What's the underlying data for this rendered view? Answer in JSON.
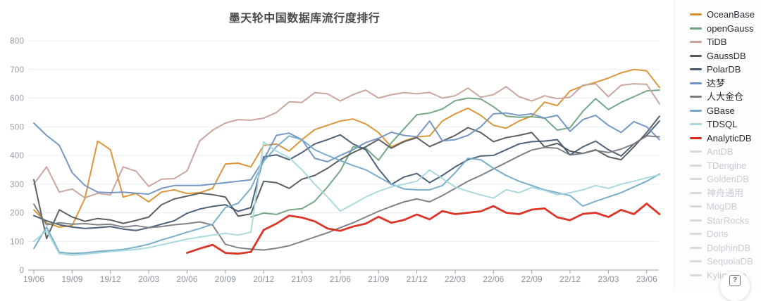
{
  "title": "墨天轮中国数据库流行度排行",
  "help_button": {
    "icon": "help-icon",
    "glyph": "?"
  },
  "legend": {
    "position": "right",
    "items": [
      {
        "label": "OceanBase",
        "color": "#d9902f",
        "active": true
      },
      {
        "label": "openGauss",
        "color": "#6fa380",
        "active": true
      },
      {
        "label": "TiDB",
        "color": "#c6a29a",
        "active": true
      },
      {
        "label": "GaussDB",
        "color": "#54575b",
        "active": true
      },
      {
        "label": "PolarDB",
        "color": "#435871",
        "active": true
      },
      {
        "label": "达梦",
        "color": "#7092c2",
        "active": true
      },
      {
        "label": "人大金仓",
        "color": "#797c80",
        "active": true
      },
      {
        "label": "GBase",
        "color": "#72aac8",
        "active": true
      },
      {
        "label": "TDSQL",
        "color": "#a6d7dc",
        "active": true
      },
      {
        "label": "AnalyticDB",
        "color": "#da2b1d",
        "active": true
      },
      {
        "label": "AntDB",
        "color": "#d6dade",
        "active": false
      },
      {
        "label": "TDengine",
        "color": "#d6dade",
        "active": false
      },
      {
        "label": "GoldenDB",
        "color": "#d6dade",
        "active": false
      },
      {
        "label": "神舟通用",
        "color": "#d6dade",
        "active": false
      },
      {
        "label": "MogDB",
        "color": "#d6dade",
        "active": false
      },
      {
        "label": "StarRocks",
        "color": "#d6dade",
        "active": false
      },
      {
        "label": "Doris",
        "color": "#d6dade",
        "active": false
      },
      {
        "label": "DolphinDB",
        "color": "#d6dade",
        "active": false
      },
      {
        "label": "SequoiaDB",
        "color": "#d6dade",
        "active": false
      },
      {
        "label": "Kyligence",
        "color": "#d6dade",
        "active": false
      }
    ]
  },
  "chart_data": {
    "type": "line",
    "title": "墨天轮中国数据库流行度排行",
    "grid": true,
    "legend_position": "right",
    "ylim": [
      0,
      800
    ],
    "y_ticks": [
      0,
      100,
      200,
      300,
      400,
      500,
      600,
      700,
      800
    ],
    "x": [
      "19/06",
      "19/07",
      "19/08",
      "19/09",
      "19/10",
      "19/11",
      "19/12",
      "20/01",
      "20/02",
      "20/03",
      "20/04",
      "20/05",
      "20/06",
      "20/07",
      "20/08",
      "20/09",
      "20/10",
      "20/11",
      "20/12",
      "21/01",
      "21/02",
      "21/03",
      "21/04",
      "21/05",
      "21/06",
      "21/07",
      "21/08",
      "21/09",
      "21/10",
      "21/11",
      "21/12",
      "22/01",
      "22/02",
      "22/03",
      "22/04",
      "22/05",
      "22/06",
      "22/07",
      "22/08",
      "22/09",
      "22/10",
      "22/11",
      "22/12",
      "23/01",
      "23/02",
      "23/03",
      "23/04",
      "23/05",
      "23/06",
      "23/07"
    ],
    "x_tick_labels": [
      "19/06",
      "19/09",
      "19/12",
      "20/03",
      "20/06",
      "20/09",
      "20/12",
      "21/03",
      "21/06",
      "21/09",
      "21/12",
      "22/03",
      "22/06",
      "22/09",
      "22/12",
      "23/03",
      "23/06"
    ],
    "series": [
      {
        "name": "OceanBase",
        "color": "#d9902f",
        "start": 0,
        "values": [
          210,
          165,
          150,
          155,
          250,
          450,
          420,
          255,
          267,
          238,
          272,
          280,
          267,
          270,
          285,
          370,
          373,
          360,
          435,
          440,
          415,
          455,
          490,
          505,
          520,
          527,
          510,
          480,
          430,
          450,
          465,
          468,
          520,
          545,
          565,
          540,
          505,
          495,
          520,
          537,
          586,
          574,
          625,
          643,
          655,
          670,
          688,
          700,
          695,
          637
        ]
      },
      {
        "name": "openGauss",
        "color": "#6fa380",
        "start": 17,
        "values": [
          185,
          199,
          194,
          210,
          214,
          240,
          290,
          346,
          430,
          425,
          383,
          444,
          493,
          542,
          548,
          562,
          591,
          600,
          597,
          570,
          537,
          533,
          535,
          530,
          488,
          497,
          554,
          598,
          560,
          585,
          605,
          625,
          628
        ]
      },
      {
        "name": "TiDB",
        "color": "#c6a29a",
        "start": 0,
        "values": [
          300,
          360,
          272,
          283,
          252,
          268,
          262,
          360,
          345,
          292,
          317,
          319,
          346,
          451,
          488,
          513,
          525,
          523,
          530,
          550,
          587,
          585,
          619,
          615,
          590,
          612,
          628,
          600,
          612,
          619,
          615,
          620,
          600,
          608,
          635,
          603,
          612,
          640,
          605,
          590,
          608,
          598,
          603,
          645,
          650,
          605,
          645,
          650,
          648,
          580
        ]
      },
      {
        "name": "GaussDB",
        "color": "#54575b",
        "start": 0,
        "values": [
          315,
          110,
          210,
          185,
          170,
          180,
          175,
          163,
          173,
          185,
          228,
          248,
          258,
          268,
          263,
          255,
          188,
          196,
          310,
          305,
          285,
          317,
          330,
          355,
          385,
          410,
          430,
          456,
          425,
          448,
          462,
          431,
          450,
          470,
          497,
          480,
          448,
          462,
          470,
          480,
          430,
          442,
          415,
          407,
          420,
          395,
          385,
          430,
          480,
          537
        ]
      },
      {
        "name": "PolarDB",
        "color": "#435871",
        "start": 0,
        "values": [
          190,
          172,
          158,
          150,
          145,
          148,
          152,
          143,
          138,
          148,
          160,
          172,
          198,
          213,
          222,
          228,
          205,
          218,
          395,
          402,
          385,
          410,
          440,
          455,
          472,
          440,
          420,
          353,
          299,
          325,
          337,
          305,
          330,
          360,
          385,
          398,
          400,
          420,
          440,
          448,
          450,
          455,
          402,
          430,
          450,
          420,
          398,
          440,
          470,
          520
        ]
      },
      {
        "name": "达梦",
        "color": "#7092c2",
        "start": 0,
        "values": [
          513,
          470,
          435,
          340,
          295,
          272,
          270,
          272,
          268,
          265,
          285,
          295,
          295,
          295,
          300,
          305,
          310,
          315,
          385,
          470,
          478,
          455,
          390,
          378,
          400,
          420,
          445,
          460,
          481,
          470,
          465,
          520,
          451,
          455,
          470,
          500,
          545,
          548,
          540,
          545,
          530,
          540,
          484,
          525,
          540,
          505,
          480,
          518,
          500,
          455
        ]
      },
      {
        "name": "人大金仓",
        "color": "#797c80",
        "start": 0,
        "values": [
          230,
          158,
          165,
          160,
          162,
          158,
          160,
          150,
          155,
          148,
          152,
          158,
          162,
          168,
          157,
          90,
          78,
          73,
          70,
          76,
          85,
          100,
          115,
          130,
          148,
          165,
          185,
          205,
          222,
          238,
          248,
          238,
          260,
          285,
          310,
          330,
          353,
          375,
          398,
          419,
          428,
          425,
          402,
          407,
          418,
          410,
          422,
          440,
          468,
          465
        ]
      },
      {
        "name": "GBase",
        "color": "#72aac8",
        "start": 0,
        "values": [
          75,
          150,
          62,
          58,
          60,
          65,
          68,
          72,
          80,
          90,
          105,
          118,
          132,
          145,
          160,
          218,
          233,
          285,
          380,
          430,
          468,
          455,
          420,
          400,
          382,
          365,
          350,
          325,
          300,
          283,
          280,
          280,
          295,
          340,
          390,
          385,
          355,
          330,
          310,
          295,
          280,
          270,
          260,
          223,
          240,
          255,
          270,
          290,
          310,
          335
        ]
      },
      {
        "name": "TDSQL",
        "color": "#a6d7dc",
        "start": 0,
        "values": [
          100,
          138,
          57,
          52,
          55,
          60,
          64,
          68,
          72,
          78,
          88,
          98,
          108,
          115,
          122,
          128,
          122,
          132,
          447,
          415,
          392,
          350,
          300,
          255,
          206,
          230,
          255,
          275,
          290,
          300,
          310,
          349,
          320,
          290,
          275,
          262,
          251,
          280,
          270,
          288,
          278,
          263,
          270,
          280,
          295,
          285,
          300,
          310,
          322,
          332
        ]
      },
      {
        "name": "AnalyticDB",
        "color": "#da2b1d",
        "start": 12,
        "values": [
          60,
          75,
          88,
          60,
          57,
          63,
          140,
          162,
          190,
          183,
          170,
          145,
          137,
          152,
          162,
          186,
          165,
          175,
          194,
          177,
          206,
          195,
          200,
          205,
          223,
          200,
          195,
          211,
          215,
          184,
          174,
          196,
          200,
          185,
          210,
          195,
          232,
          195
        ]
      }
    ]
  }
}
